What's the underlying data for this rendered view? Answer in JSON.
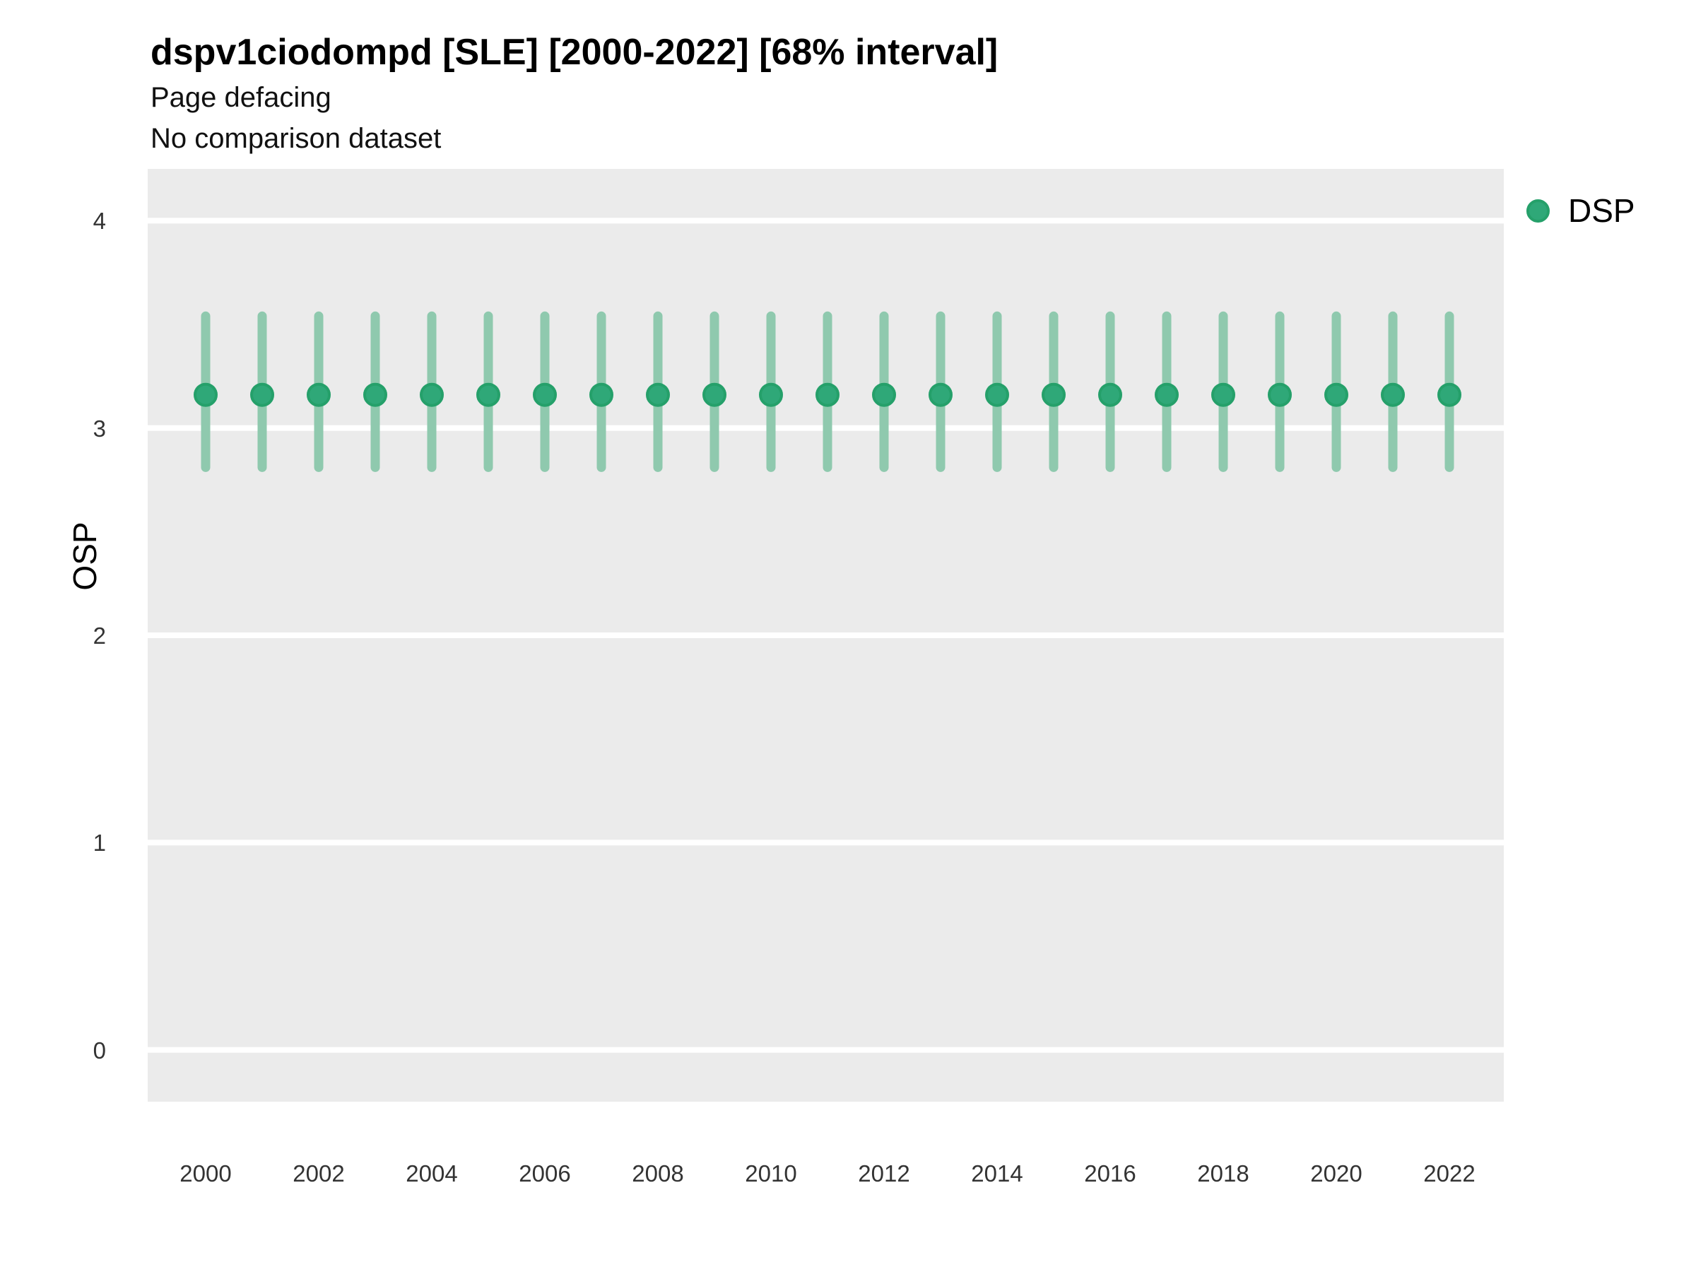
{
  "chart_data": {
    "type": "scatter",
    "mark": "pointrange",
    "title": "dspv1ciodompd [SLE] [2000-2022] [68% interval]",
    "subtitle": "Page defacing",
    "annotation": "No comparison dataset",
    "xlabel": "",
    "ylabel": "OSP",
    "ylim": [
      -0.25,
      4.25
    ],
    "yticks": [
      0,
      1,
      2,
      3,
      4
    ],
    "x": [
      2000,
      2001,
      2002,
      2003,
      2004,
      2005,
      2006,
      2007,
      2008,
      2009,
      2010,
      2011,
      2012,
      2013,
      2014,
      2015,
      2016,
      2017,
      2018,
      2019,
      2020,
      2021,
      2022
    ],
    "xtick_labels": [
      "2000",
      "2002",
      "2004",
      "2006",
      "2008",
      "2010",
      "2012",
      "2014",
      "2016",
      "2018",
      "2020",
      "2022"
    ],
    "grid": "major-horizontal-only",
    "series": [
      {
        "name": "DSP",
        "mean": [
          3.16,
          3.16,
          3.16,
          3.16,
          3.16,
          3.16,
          3.16,
          3.16,
          3.16,
          3.16,
          3.16,
          3.16,
          3.16,
          3.16,
          3.16,
          3.16,
          3.16,
          3.16,
          3.16,
          3.16,
          3.16,
          3.16,
          3.16
        ],
        "lower_68": [
          2.81,
          2.81,
          2.81,
          2.81,
          2.81,
          2.81,
          2.81,
          2.81,
          2.81,
          2.81,
          2.81,
          2.81,
          2.81,
          2.81,
          2.81,
          2.81,
          2.81,
          2.81,
          2.81,
          2.81,
          2.81,
          2.81,
          2.81
        ],
        "upper_68": [
          3.54,
          3.54,
          3.54,
          3.54,
          3.54,
          3.54,
          3.54,
          3.54,
          3.54,
          3.54,
          3.54,
          3.54,
          3.54,
          3.54,
          3.54,
          3.54,
          3.54,
          3.54,
          3.54,
          3.54,
          3.54,
          3.54,
          3.54
        ]
      }
    ],
    "legend": {
      "position": "right",
      "entries": [
        "DSP"
      ]
    },
    "style": {
      "panel_bg": "#ebebeb",
      "grid_color": "#ffffff",
      "point_fill": "#2fa878",
      "point_edge": "#25a06a",
      "interval_bar_color": "#8fc9ae",
      "title_color": "#000000",
      "tick_label_color": "#333333"
    }
  }
}
